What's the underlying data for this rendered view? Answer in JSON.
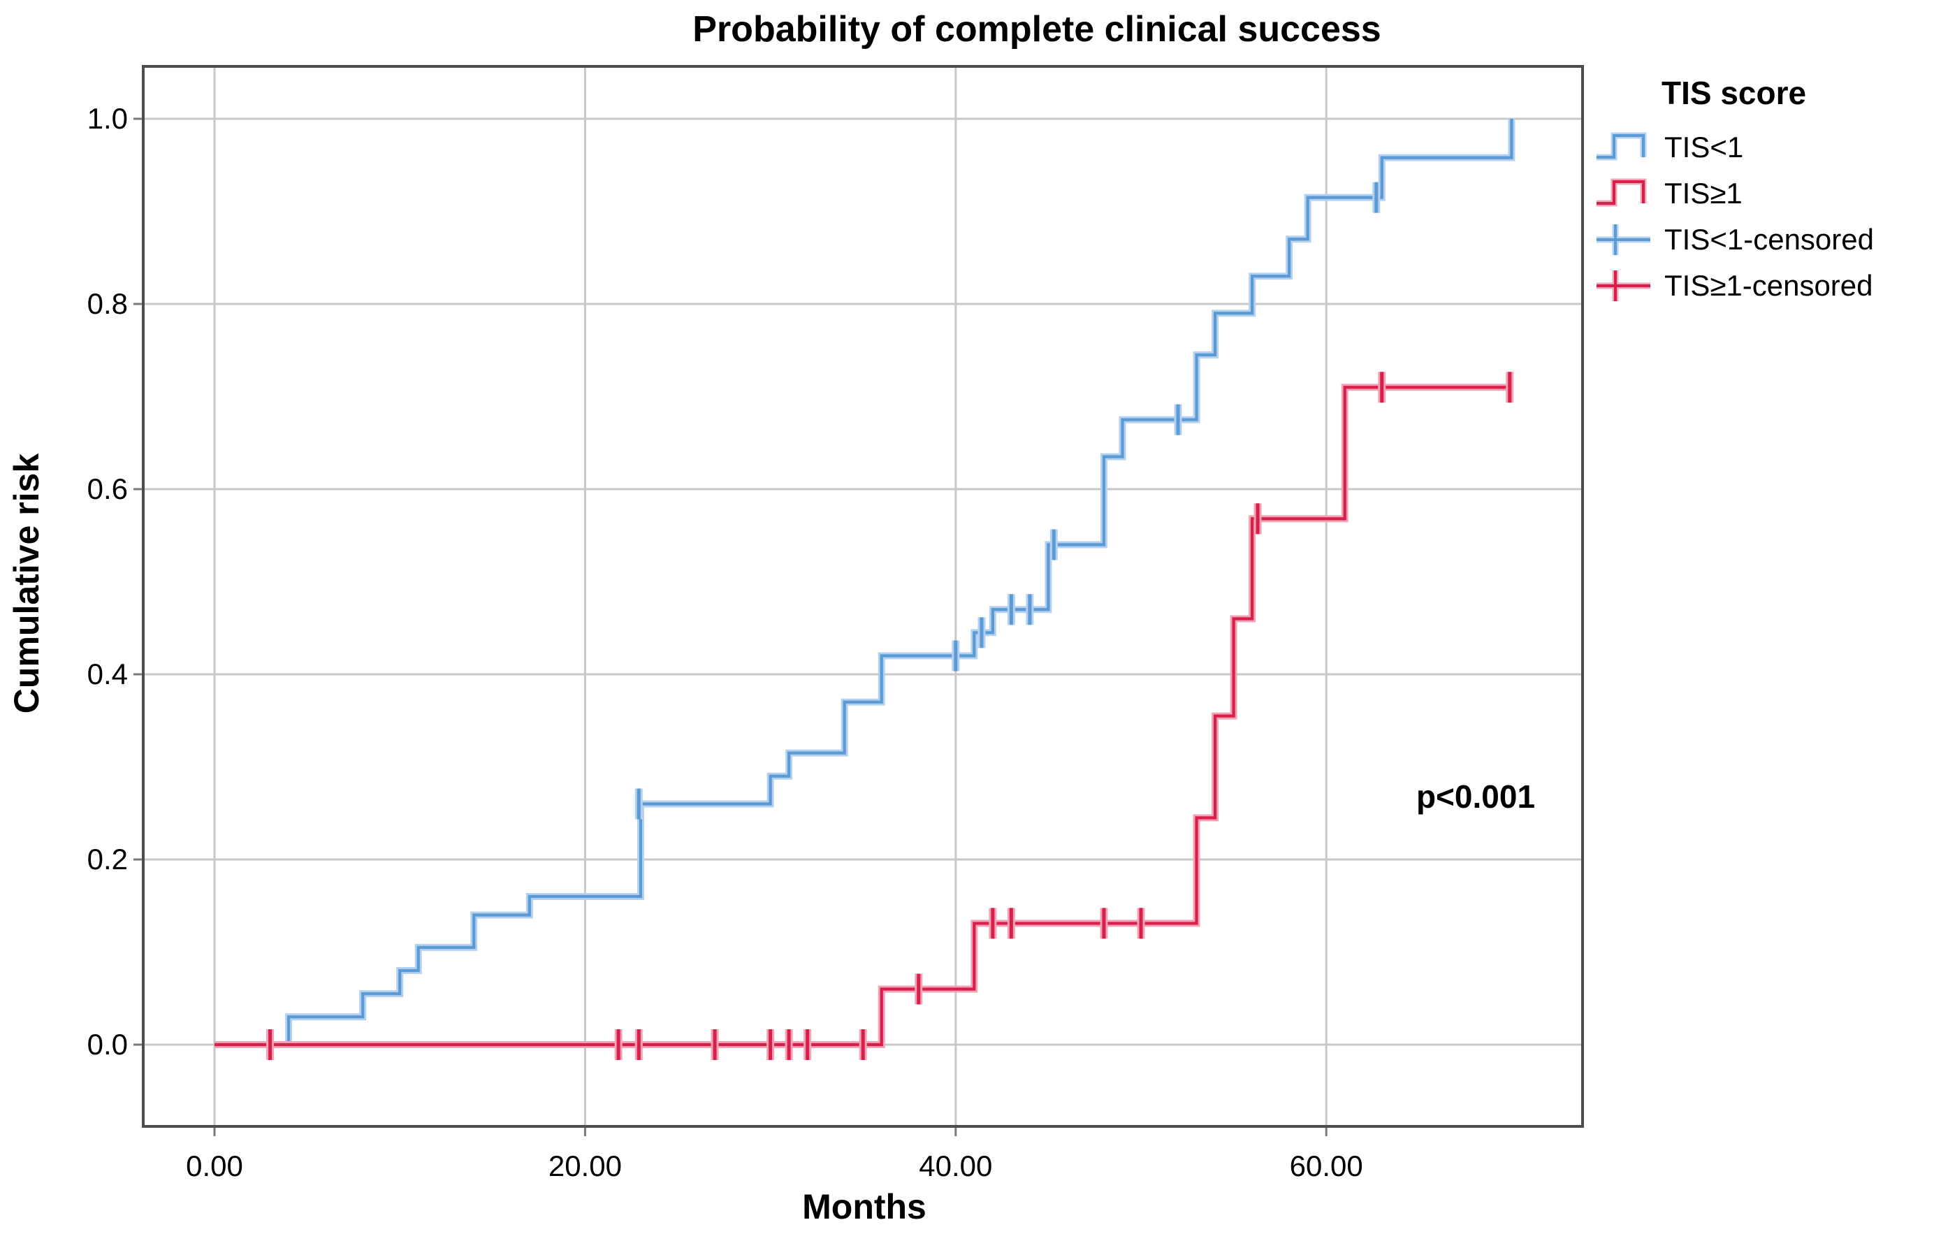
{
  "title": "Probability of complete clinical success",
  "annotation": {
    "text": "p<0.001",
    "x_month": 64,
    "y_level": 0.27
  },
  "axes": {
    "x": {
      "label": "Months",
      "ticks": [
        {
          "v": 0,
          "t": "0.00"
        },
        {
          "v": 20,
          "t": "20.00"
        },
        {
          "v": 40,
          "t": "40.00"
        },
        {
          "v": 60,
          "t": "60.00"
        }
      ]
    },
    "y": {
      "label": "Cumulative risk",
      "ticks": [
        {
          "v": 0,
          "t": "0.0"
        },
        {
          "v": 0.2,
          "t": "0.2"
        },
        {
          "v": 0.4,
          "t": "0.4"
        },
        {
          "v": 0.6,
          "t": "0.6"
        },
        {
          "v": 0.8,
          "t": "0.8"
        },
        {
          "v": 1.0,
          "t": "1.0"
        }
      ]
    }
  },
  "legend": {
    "title": "TIS score",
    "items": [
      {
        "label": "TIS<1",
        "series": "TIS<1",
        "type": "step",
        "color": "#5b9bd5",
        "halo": "#b5d1ef"
      },
      {
        "label": "TIS≥1",
        "series": "TIS≥1",
        "type": "step",
        "color": "#d91e49",
        "halo": "#f0a4b8"
      },
      {
        "label": "TIS<1-censored",
        "series": "TIS<1",
        "type": "censored",
        "color": "#5b9bd5",
        "halo": "#b5d1ef"
      },
      {
        "label": "TIS≥1-censored",
        "series": "TIS≥1",
        "type": "censored",
        "color": "#d91e49",
        "halo": "#f0a4b8"
      }
    ]
  },
  "colors": {
    "blue": "#5b9bd5",
    "blue_halo": "#b5d1ef",
    "red": "#d91e49",
    "red_halo": "#f0a4b8",
    "gridline": "#c8c8c8",
    "frame": "#4d4d4d",
    "tick": "#7a7a7a",
    "background": "#ffffff"
  },
  "chart_data": {
    "type": "line",
    "subtype": "kaplan-meier-cumulative-incidence-steps",
    "title": "Probability of complete clinical success",
    "xlabel": "Months",
    "ylabel": "Cumulative risk",
    "xlim": [
      0,
      70
    ],
    "ylim": [
      0,
      1.0
    ],
    "x_tick_values": [
      0,
      20,
      40,
      60
    ],
    "y_tick_values": [
      0,
      0.2,
      0.4,
      0.6,
      0.8,
      1.0
    ],
    "grid": true,
    "legend_position": "right",
    "p_value_annotation": "p<0.001",
    "series": [
      {
        "name": "TIS<1",
        "color": "#5b9bd5",
        "start": [
          0,
          0
        ],
        "end_month": 70,
        "steps": [
          [
            4,
            0.03
          ],
          [
            8,
            0.055
          ],
          [
            10,
            0.08
          ],
          [
            11,
            0.105
          ],
          [
            14,
            0.14
          ],
          [
            17,
            0.16
          ],
          [
            23,
            0.26
          ],
          [
            30,
            0.29
          ],
          [
            31,
            0.315
          ],
          [
            34,
            0.37
          ],
          [
            36,
            0.42
          ],
          [
            41,
            0.445
          ],
          [
            42,
            0.47
          ],
          [
            45,
            0.54
          ],
          [
            48,
            0.635
          ],
          [
            49,
            0.675
          ],
          [
            53,
            0.745
          ],
          [
            54,
            0.79
          ],
          [
            56,
            0.83
          ],
          [
            58,
            0.87
          ],
          [
            59,
            0.915
          ],
          [
            63,
            0.958
          ],
          [
            70,
            1.0
          ]
        ],
        "censored": [
          [
            22.9,
            0.26
          ],
          [
            40,
            0.42
          ],
          [
            41.4,
            0.445
          ],
          [
            43,
            0.47
          ],
          [
            44,
            0.47
          ],
          [
            45.3,
            0.54
          ],
          [
            52,
            0.675
          ],
          [
            62.7,
            0.915
          ]
        ]
      },
      {
        "name": "TIS≥1",
        "color": "#d91e49",
        "start": [
          0,
          0
        ],
        "end_month": 70,
        "steps": [
          [
            36,
            0.06
          ],
          [
            41,
            0.131
          ],
          [
            53,
            0.245
          ],
          [
            54,
            0.355
          ],
          [
            55,
            0.46
          ],
          [
            56,
            0.568
          ],
          [
            61,
            0.71
          ]
        ],
        "censored": [
          [
            3,
            0
          ],
          [
            21.8,
            0
          ],
          [
            22.9,
            0
          ],
          [
            27,
            0
          ],
          [
            30,
            0
          ],
          [
            31,
            0
          ],
          [
            32,
            0
          ],
          [
            35,
            0
          ],
          [
            38,
            0.06
          ],
          [
            42,
            0.131
          ],
          [
            43,
            0.131
          ],
          [
            48,
            0.131
          ],
          [
            50,
            0.131
          ],
          [
            56.3,
            0.568
          ],
          [
            63,
            0.71
          ],
          [
            69.9,
            0.71
          ]
        ]
      }
    ]
  }
}
